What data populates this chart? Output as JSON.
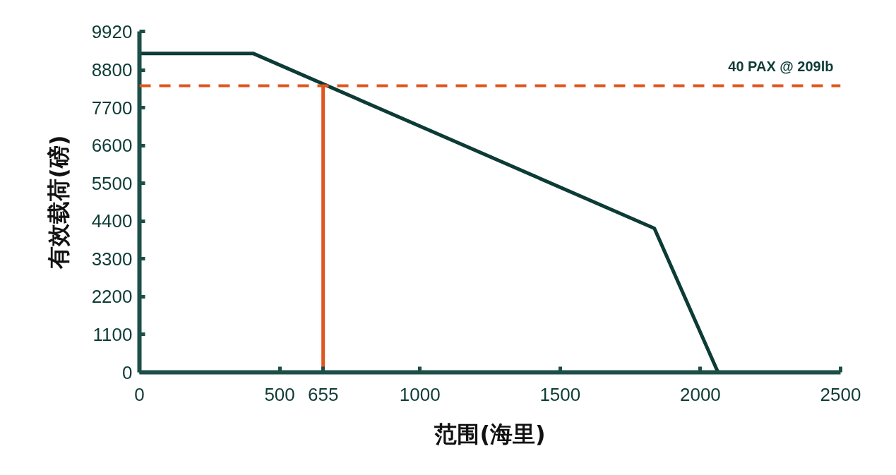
{
  "chart_data": {
    "type": "line",
    "xlabel": "范围(海里)",
    "ylabel": "有效载荷(磅)",
    "x": [
      0,
      405,
      1836,
      2063
    ],
    "series": [
      {
        "color": "#0d3b36",
        "values": [
          9280,
          9280,
          4190,
          0
        ]
      },
      {
        "color": "#e0561f",
        "x": [
          655,
          655
        ],
        "values": [
          0,
          8340
        ]
      }
    ],
    "xlim": [
      0,
      2500
    ],
    "ylim": [
      0,
      9920
    ],
    "xticks": [
      0,
      500,
      {
        "value": 655,
        "label": "655"
      },
      1000,
      1500,
      2000,
      2500
    ],
    "yticks": [
      0,
      1100,
      2200,
      3300,
      4400,
      5500,
      6600,
      7700,
      8800,
      9920
    ],
    "ref_lines": [
      {
        "axis": "y",
        "value": 8340,
        "label": "40 PAX @ 209lb",
        "color": "#e0561f",
        "line_style": "dashed"
      }
    ],
    "grid": false,
    "marker": "none",
    "line_style": "solid"
  }
}
